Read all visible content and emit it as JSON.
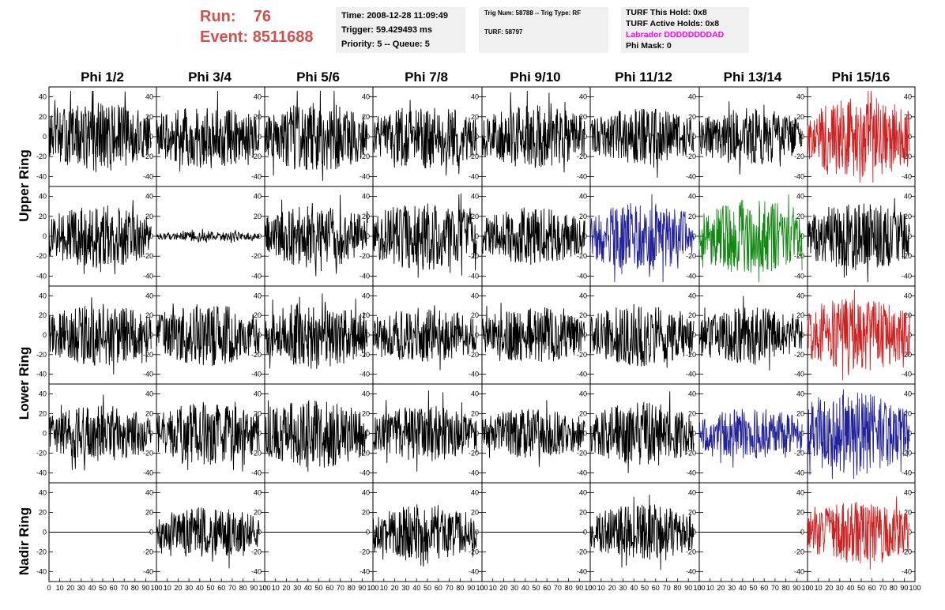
{
  "header": {
    "run_label": "Run:",
    "run_value": "76",
    "event_label": "Event:",
    "event_value": "8511688",
    "time": "Time: 2008-12-28 11:09:49",
    "trigger": "Trigger: 59.429493 ms",
    "priority": "Priority: 5 -- Queue: 5",
    "trig_num": "Trig Num: 58788 -- Trig Type: RF",
    "turf": "TURF: 58797",
    "turf_this_hold": "TURF This Hold: 0x8",
    "turf_active_holds": "TURF Active Holds: 0x8",
    "labrador": "Labrador DDDDDDDDAD",
    "phi_mask": "Phi Mask: 0"
  },
  "colors": {
    "default": "#000000",
    "red": "#cc2222",
    "blue": "#222299",
    "green": "#118811",
    "magenta": "#ff00ff",
    "title_red": "#d05050"
  },
  "chart_data": {
    "type": "line",
    "columns": [
      "Phi 1/2",
      "Phi 3/4",
      "Phi 5/6",
      "Phi 7/8",
      "Phi 9/10",
      "Phi 11/12",
      "Phi 13/14",
      "Phi 15/16"
    ],
    "rings": [
      "Upper Ring",
      "Lower Ring",
      "Nadir Ring"
    ],
    "xlim": [
      0,
      100
    ],
    "ylim": [
      -50,
      50
    ],
    "x_ticks": [
      "0",
      "10",
      "20",
      "30",
      "40",
      "50",
      "60",
      "70",
      "80",
      "90",
      "100"
    ],
    "y_ticks": [
      "40",
      "20",
      "0",
      "-20",
      "-40"
    ],
    "note_waveforms": "260 samples each; noise-like traces with amplitude approx +/-45",
    "panels": [
      {
        "row": 0,
        "col": 0,
        "color": "default",
        "amp": 22
      },
      {
        "row": 0,
        "col": 1,
        "color": "default",
        "amp": 20
      },
      {
        "row": 0,
        "col": 2,
        "color": "default",
        "amp": 22
      },
      {
        "row": 0,
        "col": 3,
        "color": "default",
        "amp": 20
      },
      {
        "row": 0,
        "col": 4,
        "color": "default",
        "amp": 20
      },
      {
        "row": 0,
        "col": 5,
        "color": "default",
        "amp": 18
      },
      {
        "row": 0,
        "col": 6,
        "color": "default",
        "amp": 18
      },
      {
        "row": 0,
        "col": 7,
        "color": "red",
        "amp": 26
      },
      {
        "row": 1,
        "col": 0,
        "color": "default",
        "amp": 20
      },
      {
        "row": 1,
        "col": 1,
        "color": "default",
        "amp": 3
      },
      {
        "row": 1,
        "col": 2,
        "color": "default",
        "amp": 20
      },
      {
        "row": 1,
        "col": 3,
        "color": "default",
        "amp": 22
      },
      {
        "row": 1,
        "col": 4,
        "color": "default",
        "amp": 18
      },
      {
        "row": 1,
        "col": 5,
        "color": "blue",
        "amp": 22
      },
      {
        "row": 1,
        "col": 6,
        "color": "green",
        "amp": 24
      },
      {
        "row": 1,
        "col": 7,
        "color": "default",
        "amp": 22
      },
      {
        "row": 2,
        "col": 0,
        "color": "default",
        "amp": 20
      },
      {
        "row": 2,
        "col": 1,
        "color": "default",
        "amp": 20
      },
      {
        "row": 2,
        "col": 2,
        "color": "default",
        "amp": 22
      },
      {
        "row": 2,
        "col": 3,
        "color": "default",
        "amp": 18
      },
      {
        "row": 2,
        "col": 4,
        "color": "default",
        "amp": 18
      },
      {
        "row": 2,
        "col": 5,
        "color": "default",
        "amp": 20
      },
      {
        "row": 2,
        "col": 6,
        "color": "default",
        "amp": 18
      },
      {
        "row": 2,
        "col": 7,
        "color": "red",
        "amp": 24
      },
      {
        "row": 3,
        "col": 0,
        "color": "default",
        "amp": 18
      },
      {
        "row": 3,
        "col": 1,
        "color": "default",
        "amp": 20
      },
      {
        "row": 3,
        "col": 2,
        "color": "default",
        "amp": 22
      },
      {
        "row": 3,
        "col": 3,
        "color": "default",
        "amp": 18
      },
      {
        "row": 3,
        "col": 4,
        "color": "default",
        "amp": 16
      },
      {
        "row": 3,
        "col": 5,
        "color": "default",
        "amp": 20
      },
      {
        "row": 3,
        "col": 6,
        "color": "blue",
        "amp": 16
      },
      {
        "row": 3,
        "col": 7,
        "color": "blue",
        "amp": 26
      },
      {
        "row": 4,
        "col": 0,
        "color": "default",
        "amp": 0
      },
      {
        "row": 4,
        "col": 1,
        "color": "default",
        "amp": 16
      },
      {
        "row": 4,
        "col": 2,
        "color": "default",
        "amp": 0
      },
      {
        "row": 4,
        "col": 3,
        "color": "default",
        "amp": 18
      },
      {
        "row": 4,
        "col": 4,
        "color": "default",
        "amp": 0
      },
      {
        "row": 4,
        "col": 5,
        "color": "default",
        "amp": 18
      },
      {
        "row": 4,
        "col": 6,
        "color": "default",
        "amp": 0
      },
      {
        "row": 4,
        "col": 7,
        "color": "red",
        "amp": 20
      }
    ]
  }
}
